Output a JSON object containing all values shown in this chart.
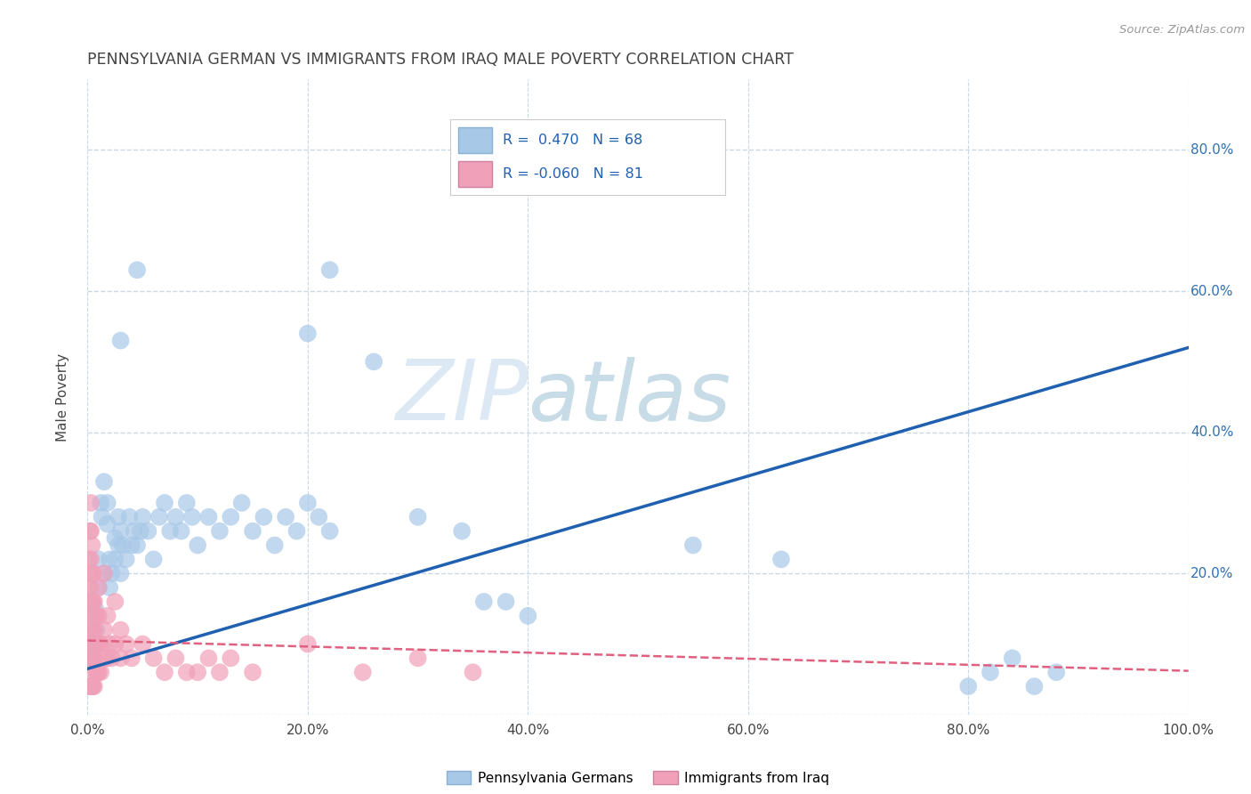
{
  "title": "PENNSYLVANIA GERMAN VS IMMIGRANTS FROM IRAQ MALE POVERTY CORRELATION CHART",
  "source_text": "Source: ZipAtlas.com",
  "ylabel": "Male Poverty",
  "legend_labels": [
    "Pennsylvania Germans",
    "Immigrants from Iraq"
  ],
  "r_values": [
    0.47,
    -0.06
  ],
  "n_values": [
    68,
    81
  ],
  "blue_color": "#a8c8e8",
  "pink_color": "#f0a0b8",
  "blue_line_color": "#2060b0",
  "pink_line_color": "#e06080",
  "title_color": "#444444",
  "watermark_zip_color": "#dce8f0",
  "watermark_atlas_color": "#c8dce8",
  "background_color": "#ffffff",
  "grid_color": "#c8d8e8",
  "legend_box_blue": "#a8c8e8",
  "legend_box_pink": "#f0a0b8",
  "legend_text_color": "#2060b0",
  "ytick_color": "#3070b0",
  "xtick_color": "#444444",
  "blue_scatter": [
    [
      0.003,
      0.08
    ],
    [
      0.005,
      0.12
    ],
    [
      0.006,
      0.1
    ],
    [
      0.007,
      0.15
    ],
    [
      0.008,
      0.12
    ],
    [
      0.01,
      0.18
    ],
    [
      0.01,
      0.22
    ],
    [
      0.012,
      0.3
    ],
    [
      0.013,
      0.28
    ],
    [
      0.015,
      0.33
    ],
    [
      0.015,
      0.2
    ],
    [
      0.018,
      0.3
    ],
    [
      0.018,
      0.27
    ],
    [
      0.02,
      0.18
    ],
    [
      0.02,
      0.22
    ],
    [
      0.022,
      0.2
    ],
    [
      0.025,
      0.25
    ],
    [
      0.025,
      0.22
    ],
    [
      0.028,
      0.24
    ],
    [
      0.028,
      0.28
    ],
    [
      0.03,
      0.2
    ],
    [
      0.03,
      0.26
    ],
    [
      0.032,
      0.24
    ],
    [
      0.035,
      0.22
    ],
    [
      0.038,
      0.28
    ],
    [
      0.04,
      0.24
    ],
    [
      0.042,
      0.26
    ],
    [
      0.045,
      0.24
    ],
    [
      0.048,
      0.26
    ],
    [
      0.05,
      0.28
    ],
    [
      0.055,
      0.26
    ],
    [
      0.06,
      0.22
    ],
    [
      0.065,
      0.28
    ],
    [
      0.07,
      0.3
    ],
    [
      0.075,
      0.26
    ],
    [
      0.08,
      0.28
    ],
    [
      0.085,
      0.26
    ],
    [
      0.09,
      0.3
    ],
    [
      0.095,
      0.28
    ],
    [
      0.1,
      0.24
    ],
    [
      0.11,
      0.28
    ],
    [
      0.12,
      0.26
    ],
    [
      0.13,
      0.28
    ],
    [
      0.14,
      0.3
    ],
    [
      0.15,
      0.26
    ],
    [
      0.16,
      0.28
    ],
    [
      0.17,
      0.24
    ],
    [
      0.18,
      0.28
    ],
    [
      0.19,
      0.26
    ],
    [
      0.2,
      0.3
    ],
    [
      0.21,
      0.28
    ],
    [
      0.22,
      0.26
    ],
    [
      0.03,
      0.53
    ],
    [
      0.045,
      0.63
    ],
    [
      0.2,
      0.54
    ],
    [
      0.22,
      0.63
    ],
    [
      0.26,
      0.5
    ],
    [
      0.3,
      0.28
    ],
    [
      0.34,
      0.26
    ],
    [
      0.36,
      0.16
    ],
    [
      0.38,
      0.16
    ],
    [
      0.4,
      0.14
    ],
    [
      0.55,
      0.24
    ],
    [
      0.63,
      0.22
    ],
    [
      0.8,
      0.04
    ],
    [
      0.82,
      0.06
    ],
    [
      0.84,
      0.08
    ],
    [
      0.86,
      0.04
    ],
    [
      0.88,
      0.06
    ]
  ],
  "pink_scatter": [
    [
      0.0,
      0.04
    ],
    [
      0.0,
      0.08
    ],
    [
      0.0,
      0.12
    ],
    [
      0.0,
      0.16
    ],
    [
      0.001,
      0.04
    ],
    [
      0.001,
      0.08
    ],
    [
      0.001,
      0.1
    ],
    [
      0.001,
      0.14
    ],
    [
      0.001,
      0.18
    ],
    [
      0.001,
      0.22
    ],
    [
      0.002,
      0.04
    ],
    [
      0.002,
      0.08
    ],
    [
      0.002,
      0.12
    ],
    [
      0.002,
      0.16
    ],
    [
      0.002,
      0.2
    ],
    [
      0.002,
      0.26
    ],
    [
      0.003,
      0.04
    ],
    [
      0.003,
      0.08
    ],
    [
      0.003,
      0.1
    ],
    [
      0.003,
      0.14
    ],
    [
      0.003,
      0.18
    ],
    [
      0.003,
      0.22
    ],
    [
      0.003,
      0.26
    ],
    [
      0.003,
      0.3
    ],
    [
      0.004,
      0.04
    ],
    [
      0.004,
      0.08
    ],
    [
      0.004,
      0.12
    ],
    [
      0.004,
      0.16
    ],
    [
      0.004,
      0.2
    ],
    [
      0.004,
      0.24
    ],
    [
      0.005,
      0.04
    ],
    [
      0.005,
      0.08
    ],
    [
      0.005,
      0.12
    ],
    [
      0.005,
      0.16
    ],
    [
      0.005,
      0.2
    ],
    [
      0.006,
      0.04
    ],
    [
      0.006,
      0.08
    ],
    [
      0.006,
      0.12
    ],
    [
      0.006,
      0.16
    ],
    [
      0.007,
      0.06
    ],
    [
      0.007,
      0.1
    ],
    [
      0.007,
      0.14
    ],
    [
      0.008,
      0.06
    ],
    [
      0.008,
      0.1
    ],
    [
      0.008,
      0.14
    ],
    [
      0.009,
      0.06
    ],
    [
      0.009,
      0.1
    ],
    [
      0.01,
      0.06
    ],
    [
      0.01,
      0.1
    ],
    [
      0.01,
      0.14
    ],
    [
      0.01,
      0.18
    ],
    [
      0.012,
      0.06
    ],
    [
      0.012,
      0.1
    ],
    [
      0.015,
      0.08
    ],
    [
      0.015,
      0.12
    ],
    [
      0.015,
      0.2
    ],
    [
      0.018,
      0.08
    ],
    [
      0.018,
      0.14
    ],
    [
      0.02,
      0.1
    ],
    [
      0.022,
      0.08
    ],
    [
      0.025,
      0.1
    ],
    [
      0.025,
      0.16
    ],
    [
      0.03,
      0.08
    ],
    [
      0.03,
      0.12
    ],
    [
      0.035,
      0.1
    ],
    [
      0.04,
      0.08
    ],
    [
      0.05,
      0.1
    ],
    [
      0.06,
      0.08
    ],
    [
      0.07,
      0.06
    ],
    [
      0.08,
      0.08
    ],
    [
      0.09,
      0.06
    ],
    [
      0.1,
      0.06
    ],
    [
      0.11,
      0.08
    ],
    [
      0.12,
      0.06
    ],
    [
      0.13,
      0.08
    ],
    [
      0.15,
      0.06
    ],
    [
      0.2,
      0.1
    ],
    [
      0.25,
      0.06
    ],
    [
      0.3,
      0.08
    ],
    [
      0.35,
      0.06
    ]
  ],
  "xlim": [
    0.0,
    1.0
  ],
  "ylim": [
    0.0,
    0.9
  ],
  "xticks": [
    0.0,
    0.2,
    0.4,
    0.6,
    0.8,
    1.0
  ],
  "xtick_labels": [
    "0.0%",
    "20.0%",
    "40.0%",
    "60.0%",
    "80.0%",
    "100.0%"
  ],
  "yticks": [
    0.0,
    0.2,
    0.4,
    0.6,
    0.8
  ],
  "ytick_labels": [
    "",
    "20.0%",
    "40.0%",
    "60.0%",
    "80.0%"
  ],
  "blue_trend_x": [
    0.0,
    1.0
  ],
  "blue_trend_y": [
    0.065,
    0.52
  ],
  "pink_trend_x": [
    0.0,
    1.0
  ],
  "pink_trend_y": [
    0.105,
    0.062
  ]
}
